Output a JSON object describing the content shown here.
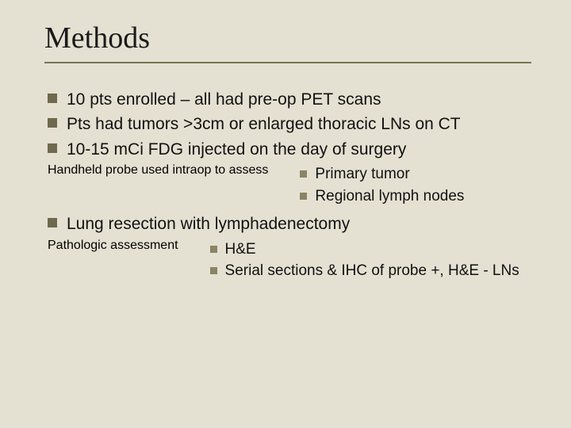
{
  "slide": {
    "title": "Methods",
    "background_color": "#e4e1d2",
    "rule_color": "#7a7354",
    "title_font": "Times New Roman",
    "title_fontsize": 38,
    "body_fontsize_lvl1": 21,
    "body_fontsize_lvl2": 19,
    "bullet_color_lvl1": "#6f694e",
    "bullet_color_lvl2": "#8b8464",
    "bullets": [
      {
        "text": "10 pts enrolled – all had pre-op PET scans"
      },
      {
        "text": "Pts had tumors >3cm or enlarged thoracic LNs on CT"
      },
      {
        "text": "10-15 mCi FDG injected on the day of surgery"
      },
      {
        "text": "Handheld probe used intraop to assess",
        "children": [
          {
            "text": "Primary tumor"
          },
          {
            "text": "Regional lymph nodes"
          }
        ]
      },
      {
        "text": "Lung resection with lymphadenectomy"
      },
      {
        "text": "Pathologic assessment",
        "children": [
          {
            "text": "H&E"
          },
          {
            "text": "Serial sections & IHC of probe +, H&E - LNs"
          }
        ]
      }
    ]
  }
}
